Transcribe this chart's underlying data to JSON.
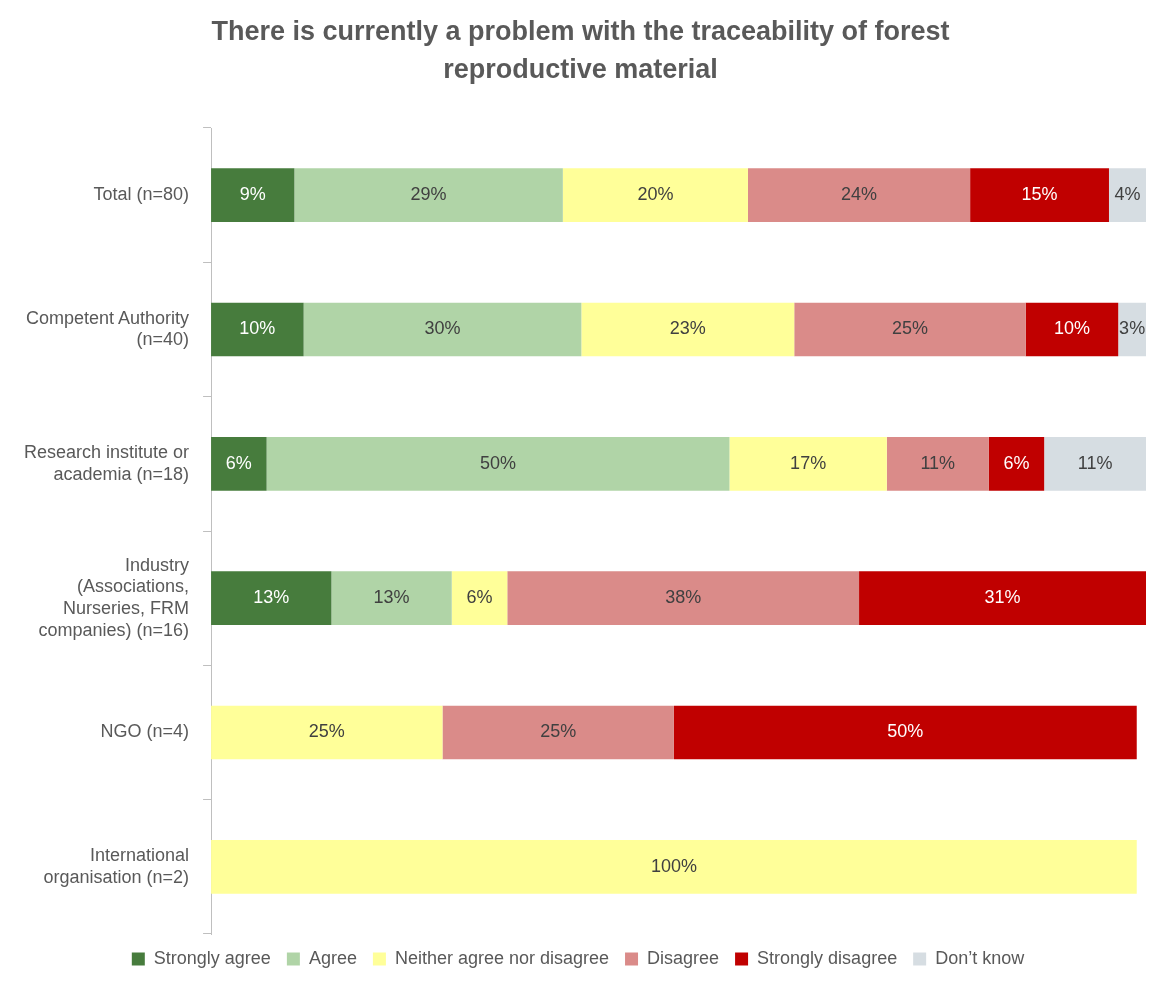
{
  "chart_data": {
    "type": "bar",
    "orientation": "horizontal",
    "stacked": true,
    "title": "There is currently a problem with the traceability of forest reproductive material",
    "categories": [
      "Total (n=80)",
      "Competent Authority (n=40)",
      "Research institute or academia (n=18)",
      "Industry (Associations, Nurseries, FRM companies) (n=16)",
      "NGO (n=4)",
      "International organisation (n=2)"
    ],
    "series": [
      {
        "name": "Strongly agree",
        "color": "#477c3d",
        "values": [
          9,
          10,
          6,
          13,
          null,
          null
        ],
        "value_labels": [
          "9%",
          "10%",
          "6%",
          "13%",
          null,
          null
        ]
      },
      {
        "name": "Agree",
        "color": "#b0d4a7",
        "values": [
          29,
          30,
          50,
          13,
          null,
          null
        ],
        "value_labels": [
          "29%",
          "30%",
          "50%",
          "13%",
          null,
          null
        ]
      },
      {
        "name": "Neither agree nor disagree",
        "color": "#ffff99",
        "values": [
          20,
          23,
          17,
          6,
          25,
          100
        ],
        "value_labels": [
          "20%",
          "23%",
          "17%",
          "6%",
          "25%",
          "100%"
        ]
      },
      {
        "name": "Disagree",
        "color": "#da8b89",
        "values": [
          24,
          25,
          11,
          38,
          25,
          null
        ],
        "value_labels": [
          "24%",
          "25%",
          "11%",
          "38%",
          "25%",
          null
        ]
      },
      {
        "name": "Strongly disagree",
        "color": "#c00000",
        "values": [
          15,
          10,
          6,
          31,
          50,
          null
        ],
        "value_labels": [
          "15%",
          "10%",
          "6%",
          "31%",
          "50%",
          null
        ]
      },
      {
        "name": "Don’t know",
        "color": "#d6dde2",
        "values": [
          4,
          3,
          11,
          null,
          null,
          null
        ],
        "value_labels": [
          "4%",
          "3%",
          "11%",
          null,
          null,
          null
        ]
      }
    ],
    "legend": "bottom",
    "tick_labels": "y"
  }
}
